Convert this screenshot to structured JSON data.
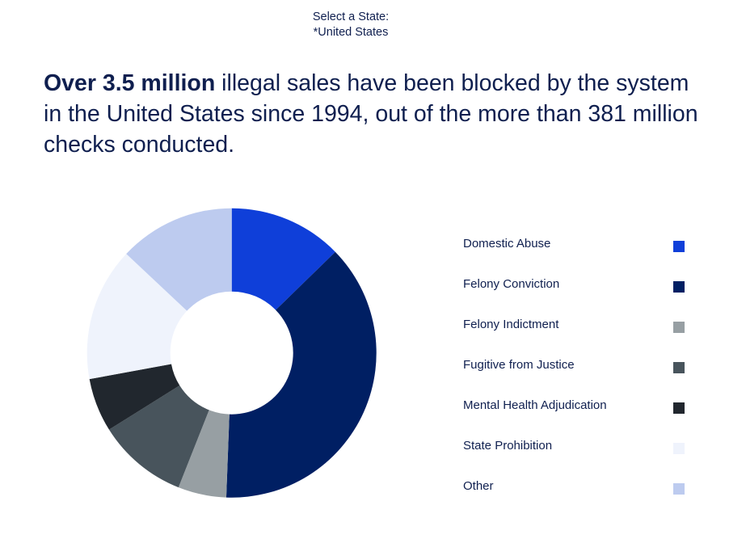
{
  "selector": {
    "label": "Select a State:",
    "value": "*United States"
  },
  "headline": {
    "bold": "Over 3.5 million",
    "rest": " illegal sales have been blocked by the system in the United States since 1994, out of the more than 381 million checks conducted."
  },
  "chart_data": {
    "type": "pie",
    "subtype": "donut",
    "title": "",
    "categories": [
      "Domestic Abuse",
      "Felony Conviction",
      "Felony Indictment",
      "Fugitive from Justice",
      "Mental Health Adjudication",
      "State Prohibition",
      "Other"
    ],
    "values": [
      12.7,
      37.9,
      5.4,
      10.1,
      6.0,
      14.9,
      13.0
    ],
    "unit": "percent of denials (estimated from slice angles)",
    "colors": [
      "#0f3fd9",
      "#001f63",
      "#979fa3",
      "#48545c",
      "#21272e",
      "#eff3fc",
      "#bdcbef"
    ],
    "legend_position": "right",
    "start_angle_deg": 0,
    "direction": "clockwise",
    "center": [
      286.7,
      436.7
    ],
    "outer_radius": 179,
    "inner_radius": 76
  }
}
